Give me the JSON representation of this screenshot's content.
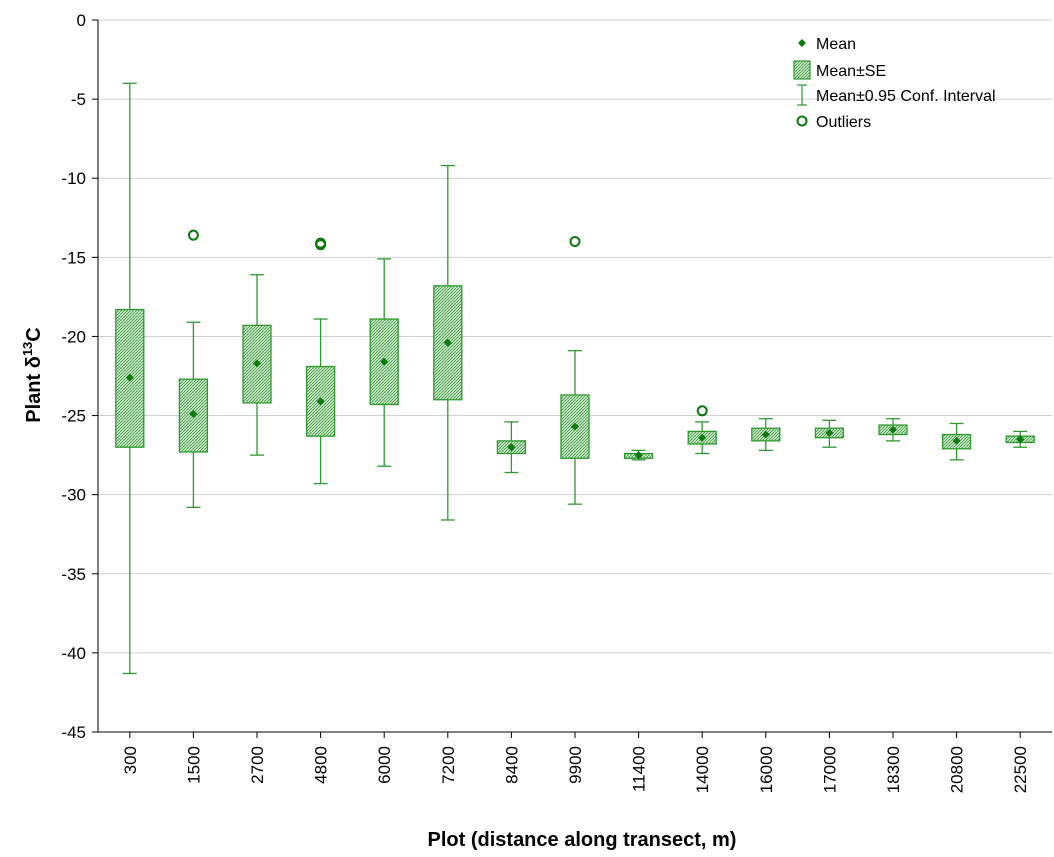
{
  "chart_data": {
    "type": "box",
    "xlabel": "Plot (distance along transect, m)",
    "ylabel": {
      "prefix": "Plant δ",
      "sup": "13",
      "suffix": "C"
    },
    "ylim": [
      -45,
      0
    ],
    "yticks": [
      0,
      -5,
      -10,
      -15,
      -20,
      -25,
      -30,
      -35,
      -40,
      -45
    ],
    "grid": "horizontal",
    "legend_position": "top-right",
    "colors": {
      "box_fill": "#cfe9cf",
      "box_hatch": "#3a9a3a",
      "stroke": "#2e9a2e",
      "mean": "#0a7a0a",
      "grid": "#d0d0d0"
    },
    "categories": [
      "300",
      "1500",
      "2700",
      "4800",
      "6000",
      "7200",
      "8400",
      "9900",
      "11400",
      "14000",
      "16000",
      "17000",
      "18300",
      "20800",
      "22500"
    ],
    "series": [
      {
        "name": "Mean",
        "values": [
          -22.6,
          -24.9,
          -21.7,
          -24.1,
          -21.6,
          -20.4,
          -27.0,
          -25.7,
          -27.5,
          -26.4,
          -26.2,
          -26.1,
          -25.9,
          -26.6,
          -26.5
        ]
      },
      {
        "name": "Mean±SE",
        "low": [
          -27.0,
          -27.3,
          -24.2,
          -26.3,
          -24.3,
          -24.0,
          -27.4,
          -27.7,
          -27.7,
          -26.8,
          -26.6,
          -26.4,
          -26.2,
          -27.1,
          -26.7
        ],
        "high": [
          -18.3,
          -22.7,
          -19.3,
          -21.9,
          -18.9,
          -16.8,
          -26.6,
          -23.7,
          -27.4,
          -26.0,
          -25.8,
          -25.8,
          -25.6,
          -26.2,
          -26.3
        ]
      },
      {
        "name": "Mean±0.95 Conf. Interval",
        "low": [
          -41.3,
          -30.8,
          -27.5,
          -29.3,
          -28.2,
          -31.6,
          -28.6,
          -30.6,
          -27.8,
          -27.4,
          -27.2,
          -27.0,
          -26.6,
          -27.8,
          -27.0
        ],
        "high": [
          -4.0,
          -19.1,
          -16.1,
          -18.9,
          -15.1,
          -9.2,
          -25.4,
          -20.9,
          -27.2,
          -25.4,
          -25.2,
          -25.3,
          -25.2,
          -25.5,
          -26.0
        ]
      },
      {
        "name": "Outliers",
        "points": [
          {
            "category": "1500",
            "y": -13.6
          },
          {
            "category": "4800",
            "y": -14.1
          },
          {
            "category": "4800",
            "y": -14.2
          },
          {
            "category": "9900",
            "y": -14.0
          },
          {
            "category": "14000",
            "y": -24.7
          }
        ]
      }
    ],
    "legend": [
      {
        "label": "Mean",
        "symbol": "mean"
      },
      {
        "label": "Mean±SE",
        "symbol": "box"
      },
      {
        "label": "Mean±0.95 Conf. Interval",
        "symbol": "whisker"
      },
      {
        "label": "Outliers",
        "symbol": "outlier"
      }
    ]
  }
}
